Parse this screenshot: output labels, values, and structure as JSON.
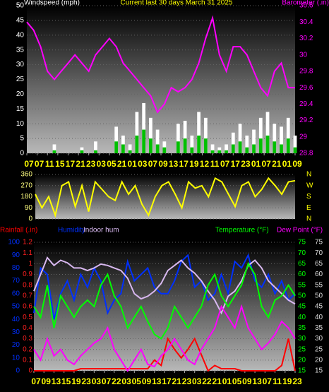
{
  "chart_data": [
    {
      "type": "combo",
      "title": "Current last 30 days March 31 2025",
      "y_label": "Windspeed (mph)",
      "y2_label": "Barometer (.in)",
      "x": [
        0,
        20,
        40,
        60,
        80,
        100,
        120,
        140,
        160,
        180,
        200,
        220,
        240,
        260,
        280,
        300,
        320,
        340,
        360,
        380,
        400,
        420,
        440,
        460,
        480,
        500,
        520,
        540,
        560,
        580,
        600,
        620,
        640,
        660,
        680,
        700,
        720,
        740,
        760,
        780
      ],
      "xlim": [
        0,
        780
      ],
      "xticks": [
        {
          "value": 0,
          "label": "07"
        },
        {
          "value": 30,
          "label": "07"
        },
        {
          "value": 60,
          "label": "11"
        },
        {
          "value": 90,
          "label": "15"
        },
        {
          "value": 120,
          "label": "17"
        },
        {
          "value": 150,
          "label": "21"
        },
        {
          "value": 180,
          "label": "23"
        },
        {
          "value": 210,
          "label": "03"
        },
        {
          "value": 240,
          "label": "05"
        },
        {
          "value": 270,
          "label": "21"
        },
        {
          "value": 300,
          "label": "01"
        },
        {
          "value": 330,
          "label": "03"
        },
        {
          "value": 360,
          "label": "07"
        },
        {
          "value": 390,
          "label": "09"
        },
        {
          "value": 420,
          "label": "13"
        },
        {
          "value": 450,
          "label": "17"
        },
        {
          "value": 480,
          "label": "19"
        },
        {
          "value": 510,
          "label": "12"
        },
        {
          "value": 540,
          "label": "11"
        },
        {
          "value": 570,
          "label": "07"
        },
        {
          "value": 600,
          "label": "17"
        },
        {
          "value": 630,
          "label": "23"
        },
        {
          "value": 660,
          "label": "01"
        },
        {
          "value": 690,
          "label": "07"
        },
        {
          "value": 720,
          "label": "21"
        },
        {
          "value": 750,
          "label": "01"
        },
        {
          "value": 780,
          "label": "09"
        }
      ],
      "ylim": [
        0,
        50
      ],
      "yticks": [
        0,
        5,
        10,
        15,
        20,
        25,
        30,
        35,
        40,
        45,
        50
      ],
      "y2lim": [
        28.8,
        30.6
      ],
      "y2ticks": [
        28.8,
        29,
        29.2,
        29.4,
        29.6,
        29.8,
        30,
        30.2,
        30.4,
        30.6
      ],
      "series": [
        {
          "type": "bar",
          "color": "#ffffff",
          "values": [
            0,
            0,
            0,
            0,
            3,
            0,
            0,
            0,
            2,
            0,
            4,
            0,
            0,
            9,
            6,
            3,
            14,
            17,
            12,
            8,
            4,
            0,
            10,
            11,
            6,
            14,
            12,
            3,
            2,
            3,
            7,
            10,
            6,
            8,
            12,
            14,
            10,
            9,
            12,
            6
          ]
        },
        {
          "type": "bar",
          "color": "#00c000",
          "values": [
            0,
            0,
            0,
            0,
            1,
            0,
            0,
            0,
            1,
            0,
            1,
            0,
            0,
            4,
            3,
            1,
            6,
            8,
            5,
            3,
            2,
            0,
            4,
            5,
            2,
            6,
            5,
            1,
            1,
            1,
            3,
            4,
            2,
            3,
            5,
            6,
            4,
            3,
            5,
            2
          ]
        },
        {
          "type": "line",
          "axis": "y2",
          "color": "#ff00ff",
          "values": [
            30.4,
            30.3,
            30.1,
            29.8,
            29.7,
            29.8,
            29.9,
            30.0,
            29.9,
            29.8,
            30.0,
            30.1,
            30.2,
            30.1,
            29.9,
            29.8,
            29.7,
            29.6,
            29.5,
            29.3,
            29.4,
            29.6,
            29.55,
            29.6,
            29.7,
            29.9,
            30.2,
            30.45,
            30.0,
            29.8,
            30.1,
            30.1,
            30.0,
            29.8,
            29.6,
            29.5,
            29.8,
            29.9,
            29.6,
            29.6
          ]
        }
      ]
    },
    {
      "type": "line",
      "x": [
        0,
        20,
        40,
        60,
        80,
        100,
        120,
        140,
        160,
        180,
        200,
        220,
        240,
        260,
        280,
        300,
        320,
        340,
        360,
        380,
        400,
        420,
        440,
        460,
        480,
        500,
        520,
        540,
        560,
        580,
        600,
        620,
        640,
        660,
        680,
        700,
        720,
        740,
        760,
        780
      ],
      "xlim": [
        0,
        780
      ],
      "ylim": [
        0,
        360
      ],
      "yticks": [
        0,
        90,
        180,
        270,
        360
      ],
      "y2lim": [
        0,
        360
      ],
      "y2ticks": [
        {
          "value": 0,
          "label": "N"
        },
        {
          "value": 90,
          "label": "E"
        },
        {
          "value": 180,
          "label": "S"
        },
        {
          "value": 270,
          "label": "W"
        },
        {
          "value": 360,
          "label": "N"
        }
      ],
      "series": [
        {
          "type": "line",
          "color": "#ffff00",
          "values": [
            200,
            90,
            180,
            30,
            270,
            300,
            100,
            270,
            60,
            300,
            240,
            180,
            150,
            300,
            200,
            270,
            120,
            30,
            180,
            270,
            300,
            200,
            90,
            300,
            250,
            270,
            180,
            330,
            300,
            200,
            100,
            270,
            300,
            180,
            240,
            330,
            270,
            200,
            300,
            310
          ]
        }
      ]
    },
    {
      "type": "combo",
      "x": [
        0,
        20,
        40,
        60,
        80,
        100,
        120,
        140,
        160,
        180,
        200,
        220,
        240,
        260,
        280,
        300,
        320,
        340,
        360,
        380,
        400,
        420,
        440,
        460,
        480,
        500,
        520,
        540,
        560,
        580,
        600,
        620,
        640,
        660,
        680,
        700,
        720,
        740,
        760,
        780
      ],
      "xlim": [
        0,
        780
      ],
      "xticks": [
        {
          "value": 0,
          "label": "07"
        },
        {
          "value": 30,
          "label": "09"
        },
        {
          "value": 60,
          "label": "13"
        },
        {
          "value": 90,
          "label": "15"
        },
        {
          "value": 120,
          "label": "19"
        },
        {
          "value": 150,
          "label": "23"
        },
        {
          "value": 180,
          "label": "03"
        },
        {
          "value": 210,
          "label": "07"
        },
        {
          "value": 240,
          "label": "22"
        },
        {
          "value": 270,
          "label": "03"
        },
        {
          "value": 300,
          "label": "05"
        },
        {
          "value": 330,
          "label": "09"
        },
        {
          "value": 360,
          "label": "13"
        },
        {
          "value": 390,
          "label": "17"
        },
        {
          "value": 420,
          "label": "21"
        },
        {
          "value": 450,
          "label": "23"
        },
        {
          "value": 480,
          "label": "03"
        },
        {
          "value": 510,
          "label": "22"
        },
        {
          "value": 540,
          "label": "21"
        },
        {
          "value": 570,
          "label": "01"
        },
        {
          "value": 600,
          "label": "05"
        },
        {
          "value": 630,
          "label": "09"
        },
        {
          "value": 660,
          "label": "13"
        },
        {
          "value": 690,
          "label": "07"
        },
        {
          "value": 720,
          "label": "11"
        },
        {
          "value": 750,
          "label": "19"
        },
        {
          "value": 780,
          "label": "23"
        }
      ],
      "ylim": [
        0,
        1.2
      ],
      "yticks": [
        0,
        0.1,
        0.2,
        0.3,
        0.4,
        0.5,
        0.6,
        0.7,
        0.8,
        0.9,
        1,
        1.1,
        1.2
      ],
      "hlim": [
        0,
        100
      ],
      "hticks": [
        0,
        10,
        20,
        30,
        40,
        50,
        60,
        70,
        80,
        90,
        100
      ],
      "y2lim": [
        15,
        75
      ],
      "y2ticks": [
        15,
        20,
        25,
        30,
        35,
        40,
        45,
        50,
        55,
        60,
        65,
        70,
        75
      ],
      "y3lim": [
        15,
        75
      ],
      "y3ticks": [
        15,
        20,
        25,
        30,
        35,
        40,
        45,
        50,
        55,
        60,
        65,
        70,
        75
      ],
      "series": [
        {
          "name": "Rainfall (.in)",
          "type": "line",
          "axis": "y",
          "color": "#ff0000",
          "values": [
            0,
            0,
            0,
            0,
            0,
            0,
            0,
            0.02,
            0.02,
            0.02,
            0.02,
            0.02,
            0.02,
            0.02,
            0.02,
            0.02,
            0.02,
            0.02,
            0.1,
            0.05,
            0.3,
            0.2,
            0.12,
            0.2,
            0.3,
            0.15,
            0,
            0.05,
            0.02,
            0.02,
            0.02,
            0,
            0,
            0,
            0,
            0,
            0,
            0.05,
            0.3,
            0
          ]
        },
        {
          "name": "Humidity",
          "type": "line",
          "axis": "h",
          "color": "#0030ff",
          "values": [
            45,
            80,
            75,
            40,
            60,
            70,
            55,
            75,
            65,
            80,
            70,
            45,
            55,
            60,
            85,
            70,
            75,
            80,
            65,
            60,
            60,
            70,
            85,
            90,
            65,
            70,
            55,
            60,
            75,
            60,
            85,
            80,
            90,
            70,
            65,
            75,
            60,
            70,
            55,
            60
          ]
        },
        {
          "name": "Indoor hum",
          "type": "line",
          "axis": "h",
          "color": "#d8b8f0",
          "values": [
            62,
            75,
            88,
            82,
            86,
            84,
            80,
            80,
            78,
            80,
            83,
            82,
            80,
            78,
            72,
            60,
            56,
            58,
            62,
            68,
            78,
            82,
            86,
            80,
            76,
            70,
            62,
            55,
            45,
            58,
            62,
            70,
            82,
            86,
            80,
            70,
            65,
            60,
            55,
            52
          ]
        },
        {
          "name": "Temperature (°F)",
          "type": "line",
          "axis": "y2",
          "color": "#00ff00",
          "values": [
            45,
            40,
            55,
            35,
            50,
            45,
            40,
            45,
            48,
            45,
            55,
            60,
            50,
            45,
            35,
            40,
            45,
            38,
            32,
            30,
            35,
            45,
            40,
            35,
            40,
            45,
            55,
            60,
            50,
            45,
            50,
            55,
            65,
            60,
            45,
            40,
            48,
            50,
            55,
            50
          ]
        },
        {
          "name": "Dew Point (°F)",
          "type": "line",
          "axis": "y3",
          "color": "#ff00ff",
          "values": [
            25,
            20,
            30,
            22,
            25,
            20,
            18,
            22,
            25,
            28,
            30,
            35,
            25,
            20,
            15,
            20,
            25,
            18,
            17,
            22,
            25,
            30,
            25,
            20,
            18,
            25,
            30,
            35,
            45,
            40,
            35,
            45,
            35,
            30,
            25,
            28,
            32,
            38,
            35,
            30
          ]
        }
      ]
    }
  ]
}
